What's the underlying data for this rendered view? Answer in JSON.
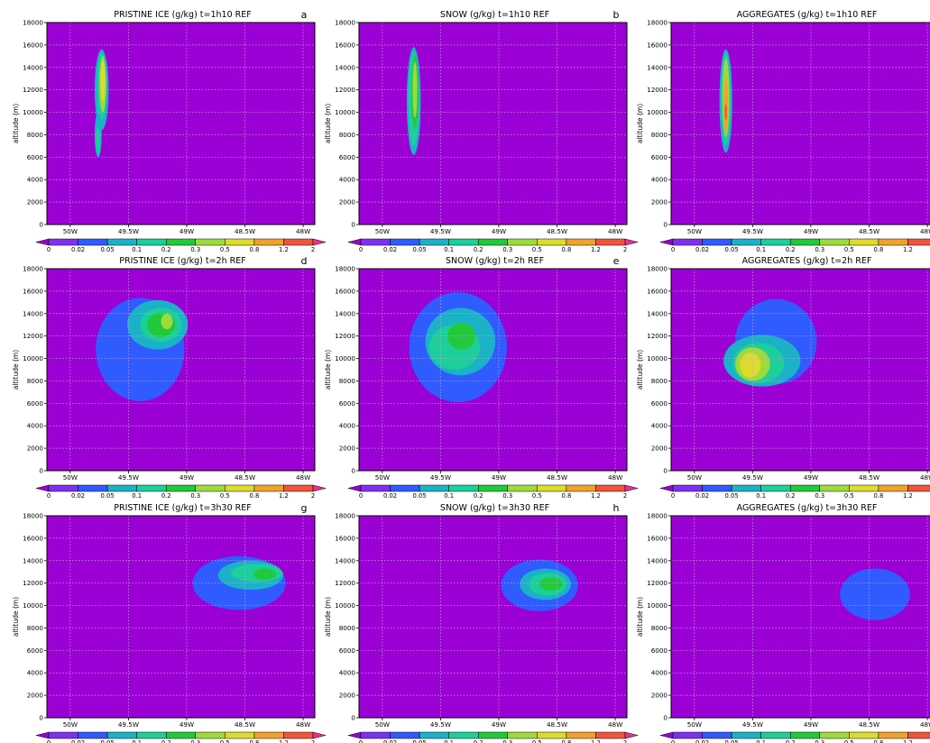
{
  "legend": {
    "levels": [
      "0",
      "0.02",
      "0.05",
      "0.1",
      "0.2",
      "0.3",
      "0.5",
      "0.8",
      "1.2",
      "2"
    ],
    "colors": [
      "#9b00d4",
      "#7a32f0",
      "#2f5bff",
      "#1bb2c8",
      "#1ccf9b",
      "#22c93c",
      "#9fd93c",
      "#dcdc2c",
      "#f0a22c",
      "#f0553c",
      "#ee2d96"
    ]
  },
  "common": {
    "ylabel": "altitude (m)",
    "yticks": [
      0,
      2000,
      4000,
      6000,
      8000,
      10000,
      12000,
      14000,
      16000,
      18000
    ],
    "xticks": [
      {
        "value": -50.0,
        "label": "50W"
      },
      {
        "value": -49.5,
        "label": "49.5W"
      },
      {
        "value": -49.0,
        "label": "49W"
      },
      {
        "value": -48.5,
        "label": "48.5W"
      },
      {
        "value": -48.0,
        "label": "48W"
      }
    ],
    "xlim": [
      -50.2,
      -47.9
    ],
    "ylim": [
      0,
      18000
    ],
    "grid": true
  },
  "chart_data": [
    {
      "type": "heatmap",
      "title": "PRISTINE ICE (g/kg) t=1h10 REF",
      "letter": "a",
      "blobs": [
        {
          "x": -49.73,
          "y": 12000,
          "rx": 0.06,
          "ry": 3600,
          "value": 0.05
        },
        {
          "x": -49.73,
          "y": 12300,
          "rx": 0.04,
          "ry": 3000,
          "value": 0.1
        },
        {
          "x": -49.72,
          "y": 12500,
          "rx": 0.03,
          "ry": 2500,
          "value": 0.3
        },
        {
          "x": -49.72,
          "y": 12800,
          "rx": 0.02,
          "ry": 1800,
          "value": 0.5
        },
        {
          "x": -49.76,
          "y": 8000,
          "rx": 0.03,
          "ry": 2000,
          "value": 0.05
        },
        {
          "x": -49.76,
          "y": 7500,
          "rx": 0.02,
          "ry": 1200,
          "value": 0.1
        }
      ]
    },
    {
      "type": "heatmap",
      "title": "SNOW (g/kg) t=1h10 REF",
      "letter": "b",
      "blobs": [
        {
          "x": -49.73,
          "y": 11000,
          "rx": 0.06,
          "ry": 4800,
          "value": 0.05
        },
        {
          "x": -49.73,
          "y": 11200,
          "rx": 0.045,
          "ry": 4200,
          "value": 0.1
        },
        {
          "x": -49.72,
          "y": 11800,
          "rx": 0.03,
          "ry": 3300,
          "value": 0.2
        },
        {
          "x": -49.72,
          "y": 12000,
          "rx": 0.02,
          "ry": 2500,
          "value": 0.3
        }
      ]
    },
    {
      "type": "heatmap",
      "title": "AGGREGATES (g/kg) t=1h10 REF",
      "letter": "",
      "blobs": [
        {
          "x": -49.73,
          "y": 11000,
          "rx": 0.055,
          "ry": 4600,
          "value": 0.05
        },
        {
          "x": -49.73,
          "y": 11200,
          "rx": 0.04,
          "ry": 4100,
          "value": 0.1
        },
        {
          "x": -49.73,
          "y": 11300,
          "rx": 0.03,
          "ry": 3500,
          "value": 0.3
        },
        {
          "x": -49.73,
          "y": 10600,
          "rx": 0.02,
          "ry": 2400,
          "value": 0.8
        },
        {
          "x": -49.73,
          "y": 10000,
          "rx": 0.01,
          "ry": 700,
          "value": 1.2
        }
      ]
    },
    {
      "type": "heatmap",
      "title": "PRISTINE ICE (g/kg) t=2h REF",
      "letter": "d",
      "blobs": [
        {
          "x": -49.4,
          "y": 10800,
          "rx": 0.38,
          "ry": 4600,
          "value": 0.02
        },
        {
          "x": -49.25,
          "y": 13000,
          "rx": 0.26,
          "ry": 2200,
          "value": 0.05
        },
        {
          "x": -49.22,
          "y": 13000,
          "rx": 0.18,
          "ry": 1500,
          "value": 0.1
        },
        {
          "x": -49.22,
          "y": 13000,
          "rx": 0.12,
          "ry": 1100,
          "value": 0.2
        },
        {
          "x": -49.17,
          "y": 13300,
          "rx": 0.05,
          "ry": 700,
          "value": 0.3
        }
      ]
    },
    {
      "type": "heatmap",
      "title": "SNOW (g/kg) t=2h REF",
      "letter": "e",
      "blobs": [
        {
          "x": -49.35,
          "y": 11000,
          "rx": 0.42,
          "ry": 4900,
          "value": 0.02
        },
        {
          "x": -49.33,
          "y": 11500,
          "rx": 0.3,
          "ry": 3000,
          "value": 0.05
        },
        {
          "x": -49.38,
          "y": 11000,
          "rx": 0.22,
          "ry": 2000,
          "value": 0.1
        },
        {
          "x": -49.32,
          "y": 12000,
          "rx": 0.12,
          "ry": 1200,
          "value": 0.2
        }
      ]
    },
    {
      "type": "heatmap",
      "title": "AGGREGATES (g/kg) t=2h REF",
      "letter": "",
      "blobs": [
        {
          "x": -49.3,
          "y": 11500,
          "rx": 0.35,
          "ry": 3800,
          "value": 0.02
        },
        {
          "x": -49.42,
          "y": 9800,
          "rx": 0.33,
          "ry": 2300,
          "value": 0.05
        },
        {
          "x": -49.45,
          "y": 9600,
          "rx": 0.22,
          "ry": 1800,
          "value": 0.1
        },
        {
          "x": -49.5,
          "y": 9500,
          "rx": 0.15,
          "ry": 1500,
          "value": 0.3
        },
        {
          "x": -49.52,
          "y": 9400,
          "rx": 0.09,
          "ry": 1100,
          "value": 0.5
        }
      ]
    },
    {
      "type": "heatmap",
      "title": "PRISTINE ICE (g/kg) t=3h30 REF",
      "letter": "g",
      "blobs": [
        {
          "x": -48.55,
          "y": 12000,
          "rx": 0.4,
          "ry": 2400,
          "value": 0.02
        },
        {
          "x": -48.45,
          "y": 12700,
          "rx": 0.28,
          "ry": 1300,
          "value": 0.05
        },
        {
          "x": -48.4,
          "y": 12900,
          "rx": 0.22,
          "ry": 800,
          "value": 0.1
        },
        {
          "x": -48.33,
          "y": 12800,
          "rx": 0.1,
          "ry": 500,
          "value": 0.2
        }
      ]
    },
    {
      "type": "heatmap",
      "title": "SNOW (g/kg) t=3h30 REF",
      "letter": "h",
      "blobs": [
        {
          "x": -48.65,
          "y": 11800,
          "rx": 0.33,
          "ry": 2300,
          "value": 0.02
        },
        {
          "x": -48.6,
          "y": 11900,
          "rx": 0.22,
          "ry": 1400,
          "value": 0.05
        },
        {
          "x": -48.58,
          "y": 11900,
          "rx": 0.16,
          "ry": 1000,
          "value": 0.1
        },
        {
          "x": -48.55,
          "y": 11900,
          "rx": 0.1,
          "ry": 600,
          "value": 0.2
        }
      ]
    },
    {
      "type": "heatmap",
      "title": "AGGREGATES (g/kg) t=3h30 REF",
      "letter": "",
      "blobs": [
        {
          "x": -48.45,
          "y": 11000,
          "rx": 0.3,
          "ry": 2300,
          "value": 0.02
        }
      ]
    }
  ]
}
